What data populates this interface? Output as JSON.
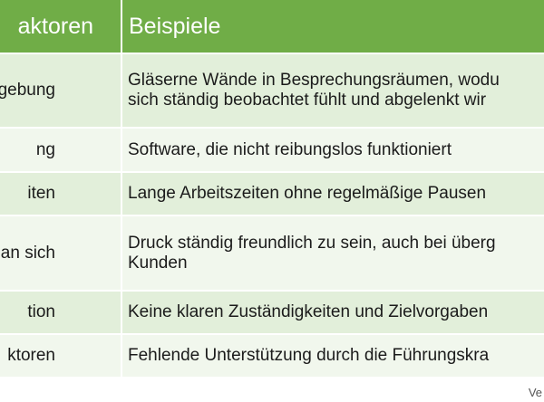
{
  "table": {
    "header": {
      "col1": "aktoren",
      "col2": "Beispiele"
    },
    "rows": [
      {
        "factor": "ngebung",
        "example_lines": [
          "Gläserne Wände in Besprechungsräumen, wodu",
          "sich ständig beobachtet fühlt und abgelenkt wir"
        ]
      },
      {
        "factor": "ng",
        "example_lines": [
          "Software, die nicht reibungslos funktioniert"
        ]
      },
      {
        "factor": "iten",
        "example_lines": [
          "Lange Arbeitszeiten ohne regelmäßige Pausen"
        ]
      },
      {
        "factor": "an sich",
        "example_lines": [
          "Druck ständig freundlich zu sein, auch bei überg",
          "Kunden"
        ]
      },
      {
        "factor": "tion",
        "example_lines": [
          "Keine klaren Zuständigkeiten und Zielvorgaben"
        ]
      },
      {
        "factor": "ktoren",
        "example_lines": [
          "Fehlende Unterstützung durch die Führungskra"
        ]
      }
    ]
  },
  "footer": {
    "text": "Ve"
  },
  "colors": {
    "header": "#70ad47",
    "band_dark": "#e2efda",
    "band_light": "#f1f7ed"
  }
}
